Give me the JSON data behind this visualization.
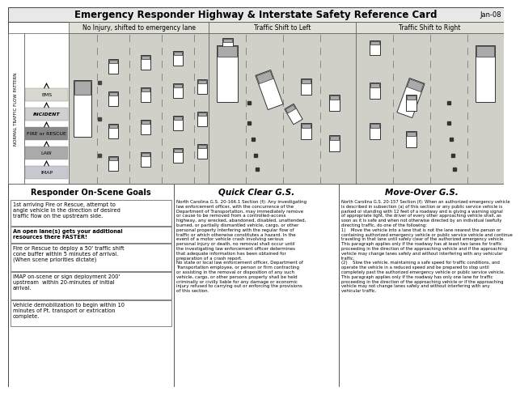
{
  "title": "Emergency Responder Highway & Interstate Safety Reference Card",
  "date_label": "Jan-08",
  "col_headers": [
    "No Injury, shifted to emergency lane",
    "Traffic Shift to Left",
    "Traffic Shift to Right"
  ],
  "left_label": "NORMAL TRAFFIC FLOW PATTERN",
  "flow_labels": [
    "EMS",
    "INCIDENT",
    "FIRE or RESCUE",
    "LAW",
    "IMAP"
  ],
  "flow_colors": [
    "#d8d8d0",
    "#d0d0d0",
    "#888888",
    "#aaaaaa",
    "#c8c8d0"
  ],
  "section_headers": [
    "Responder On-Scene Goals",
    "Quick Clear G.S.",
    "Move-Over G.S."
  ],
  "goals_blocks": [
    "1st arriving Fire or Rescue, attempt to\nangle vehicle in the direction of desired\ntraffic flow on the upstream side.",
    "An open lane(s) gets your additional\nresources there FASTER!",
    "Fire or Rescue to deploy a 50' traffic shift\ncone buffer within 5 minutes of arrival.\n(When scene priorities dictate)",
    "IMAP on-scene or sign deployment 200'\nupstream  within 20-minutes of initial\narrival.",
    "Vehicle demobilization to begin within 10\nminutes of Pt. transport or extrication\ncomplete."
  ],
  "goals_bold": [
    false,
    true,
    false,
    false,
    false
  ],
  "quick_clear_text": "North Carolina G.S. 20-166.1 Section (f): Any investigating\nlaw enforcement officer, with the concurrence of the\nDepartment of Transportation, may immediately remove\nor cause to be removed from a controlled-access\nhighway, any wrecked, abandoned, disabled, unattended,\nburned, or partially dismantled vehicle, cargo, or other\npersonal property interfering with the regular flow of\ntraffic or which otherwise constitutes a hazard. In the\nevent of a motor vehicle crash involving serious\npersonal injury or death, no removal shall occur until\nthe investigating law enforcement officer determines\nthat adequate information has been obtained for\npreparation of a crash report.\nNo state or local law enforcement officer, Department of\nTransportation employee, or person or firm contracting\nor assisting in the removal or disposition of any such\nvehicle, cargo, or other persons property shall be held\ncriminally or civilly liable for any damage or economic\ninjury refused to carrying out or enforcing the provisions\nof this section.",
  "move_over_text": "North Carolina G.S. 20-157 Section (f): When an authorized emergency vehicle\nis described in subsection (a) of this section or any public service vehicle is\nparked or standing with 12 feet of a roadway and is giving a warning signal\nof appropriate light, the driver of every other approaching vehicle shall, as\nsoon as it is safe and when not otherwise directed by an individual lawfully\ndirecting traffic, do one of the following:\n1)    Move the vehicle into a lane that is not the lane nearest the person or\ncontaining authorized emergency vehicle or public service vehicle and continue\ntraveling in that lane until safely clear of the authorized emergency vehicle.\nThis paragraph applies only if the roadway has at least two lanes for traffic\nproceeding in the direction of the approaching vehicle and if the approaching\nvehicle may change lanes safely and without interfering with any vehicular\ntraffic.\n(2)    Slow the vehicle, maintaining a safe speed for traffic conditions, and\noperate the vehicle in a reduced speed and be prepared to stop until\ncompletely past the authorized emergency vehicle or public service vehicle.\nThis paragraph applies only if the roadway has only one lane for traffic\nproceeding in the direction of the approaching vehicle or if the approaching\nvehicle may not change lanes safely and without interfering with any\nvehicular traffic.",
  "bg_color": "#f0f0ec",
  "road_bg": "#d0d0c8",
  "white": "#ffffff",
  "border": "#555555"
}
